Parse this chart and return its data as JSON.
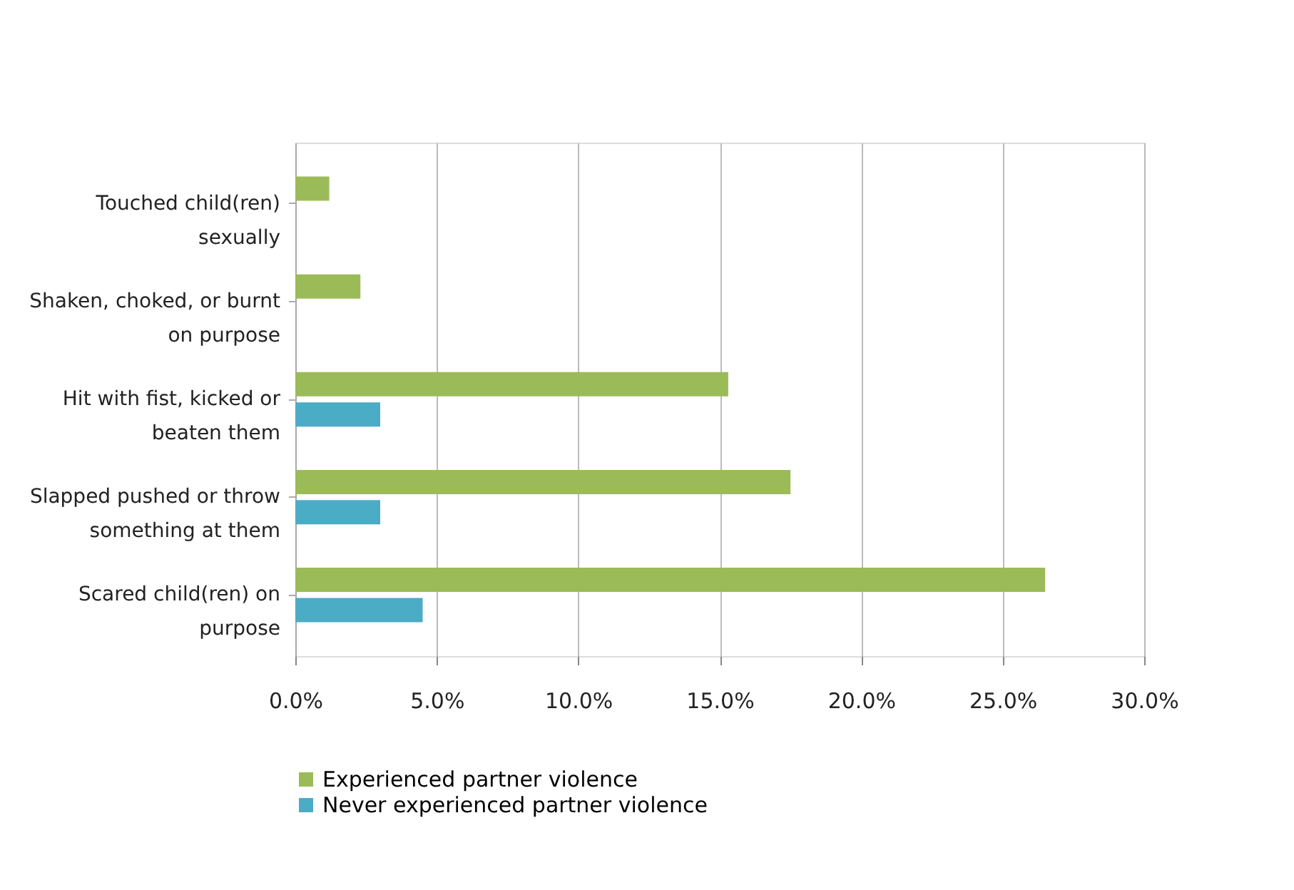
{
  "chart_data": {
    "type": "bar",
    "orientation": "horizontal",
    "categories": [
      "Touched child(ren) sexually",
      "Shaken, choked, or burnt on purpose",
      "Hit with fist, kicked or beaten them",
      "Slapped pushed or throw something at them",
      "Scared child(ren) on purpose"
    ],
    "series": [
      {
        "name": "Experienced partner violence",
        "color": "#9bbb59",
        "values": [
          1.2,
          2.3,
          15.3,
          17.5,
          26.5
        ]
      },
      {
        "name": "Never experienced partner violence",
        "color": "#4bacc6",
        "values": [
          null,
          null,
          3.0,
          3.0,
          4.5
        ]
      }
    ],
    "xlim": [
      0,
      30
    ],
    "xticks": [
      {
        "value": 0,
        "label": "0.0%"
      },
      {
        "value": 5,
        "label": "5.0%"
      },
      {
        "value": 10,
        "label": "10.0%"
      },
      {
        "value": 15,
        "label": "15.0%"
      },
      {
        "value": 20,
        "label": "20.0%"
      },
      {
        "value": 25,
        "label": "25.0%"
      },
      {
        "value": 30,
        "label": "30.0%"
      }
    ],
    "grid": "x",
    "legend": "bottom left"
  }
}
